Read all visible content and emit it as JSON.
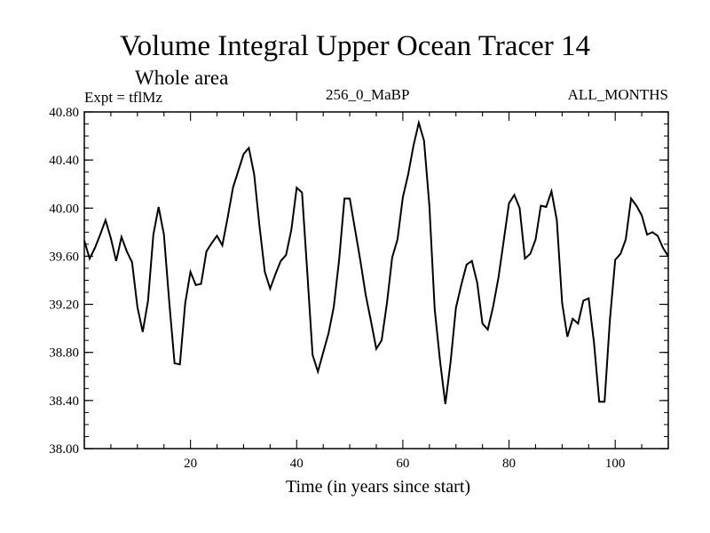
{
  "chart_data": {
    "type": "line",
    "title": "Volume Integral Upper Ocean Tracer 14",
    "subtitle": "Whole area",
    "annotation_left": "Expt = tflMz",
    "annotation_center": "256_0_MaBP",
    "annotation_right": "ALL_MONTHS",
    "xlabel": "Time (in years since start)",
    "ylabel": "",
    "xlim": [
      0,
      110
    ],
    "ylim": [
      38.0,
      40.8
    ],
    "xticks": [
      20,
      40,
      60,
      80,
      100
    ],
    "xtick_labels": [
      "20",
      "40",
      "60",
      "80",
      "100"
    ],
    "yticks": [
      38.0,
      38.4,
      38.8,
      39.2,
      39.6,
      40.0,
      40.4,
      40.8
    ],
    "ytick_labels": [
      "38.00",
      "38.40",
      "38.80",
      "39.20",
      "39.60",
      "40.00",
      "40.40",
      "40.80"
    ],
    "series": [
      {
        "name": "Volume Integral Upper Ocean Tracer 14",
        "x": [
          0,
          1,
          2,
          3,
          4,
          5,
          6,
          7,
          8,
          9,
          10,
          11,
          12,
          13,
          14,
          15,
          16,
          17,
          18,
          19,
          20,
          21,
          22,
          23,
          24,
          25,
          26,
          27,
          28,
          29,
          30,
          31,
          32,
          33,
          34,
          35,
          36,
          37,
          38,
          39,
          40,
          41,
          42,
          43,
          44,
          45,
          46,
          47,
          48,
          49,
          50,
          51,
          52,
          53,
          54,
          55,
          56,
          57,
          58,
          59,
          60,
          61,
          62,
          63,
          64,
          65,
          66,
          67,
          68,
          69,
          70,
          71,
          72,
          73,
          74,
          75,
          76,
          77,
          78,
          79,
          80,
          81,
          82,
          83,
          84,
          85,
          86,
          87,
          88,
          89,
          90,
          91,
          92,
          93,
          94,
          95,
          96,
          97,
          98,
          99,
          100,
          101,
          102,
          103,
          104,
          105,
          106,
          107,
          108,
          109,
          110
        ],
        "values": [
          39.73,
          39.58,
          39.67,
          39.78,
          39.9,
          39.75,
          39.56,
          39.76,
          39.64,
          39.55,
          39.18,
          38.97,
          39.23,
          39.78,
          40.01,
          39.78,
          39.22,
          38.71,
          38.7,
          39.21,
          39.47,
          39.36,
          39.37,
          39.64,
          39.71,
          39.77,
          39.69,
          39.92,
          40.17,
          40.31,
          40.45,
          40.5,
          40.28,
          39.85,
          39.47,
          39.33,
          39.45,
          39.56,
          39.61,
          39.82,
          40.17,
          40.13,
          39.47,
          38.78,
          38.64,
          38.8,
          38.96,
          39.18,
          39.57,
          40.08,
          40.08,
          39.82,
          39.56,
          39.28,
          39.06,
          38.83,
          38.9,
          39.21,
          39.59,
          39.74,
          40.09,
          40.28,
          40.52,
          40.71,
          40.56,
          40.02,
          39.16,
          38.73,
          38.37,
          38.72,
          39.17,
          39.36,
          39.53,
          39.56,
          39.38,
          39.04,
          38.99,
          39.18,
          39.42,
          39.73,
          40.04,
          40.11,
          40.0,
          39.58,
          39.62,
          39.74,
          40.02,
          40.01,
          40.14,
          39.9,
          39.21,
          38.93,
          39.08,
          39.04,
          39.23,
          39.25,
          38.88,
          38.39,
          38.39,
          39.07,
          39.57,
          39.62,
          39.74,
          40.08,
          40.02,
          39.94,
          39.78,
          39.8,
          39.77,
          39.67,
          39.6
        ]
      }
    ]
  }
}
